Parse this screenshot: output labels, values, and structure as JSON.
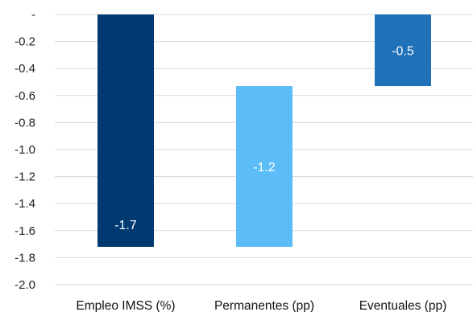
{
  "chart_data": {
    "type": "bar",
    "categories": [
      "Empleo IMSS (%)",
      "Permanentes (pp)",
      "Eventuales (pp)"
    ],
    "y_tick_labels": [
      "-",
      "-0.2",
      "-0.4",
      "-0.6",
      "-0.8",
      "-1.0",
      "-1.2",
      "-1.4",
      "-1.6",
      "-1.8",
      "-2.0"
    ],
    "ylim": [
      -2.0,
      0
    ],
    "grid": true,
    "legend": "none",
    "bars": [
      {
        "category": "Empleo IMSS (%)",
        "bottom": -1.72,
        "top": 0,
        "label": "-1.7",
        "color": "#003a70"
      },
      {
        "category": "Permanentes (pp)",
        "bottom": -1.72,
        "top": -0.53,
        "label": "-1.2",
        "color": "#5bbcf7"
      },
      {
        "category": "Eventuales (pp)",
        "bottom": -0.53,
        "top": 0,
        "label": "-0.5",
        "color": "#1f72b8"
      }
    ]
  }
}
